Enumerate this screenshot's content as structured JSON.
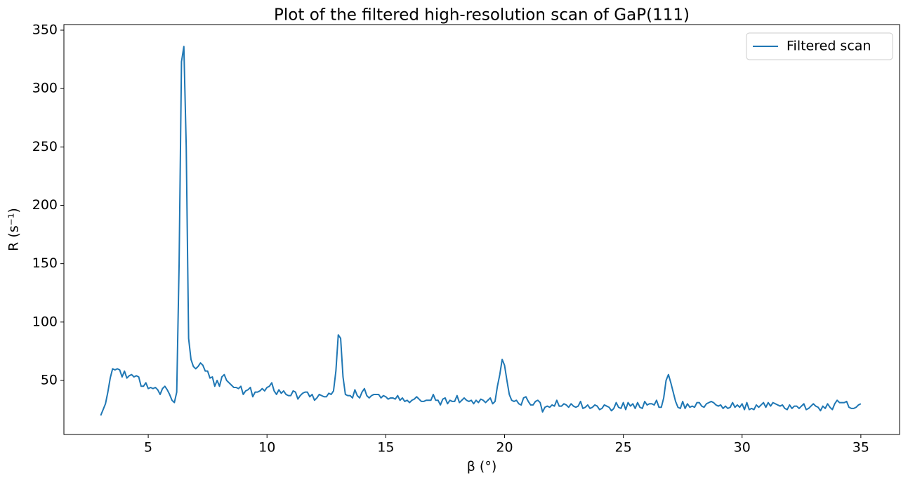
{
  "chart_data": {
    "type": "line",
    "title": "Plot of the filtered high-resolution scan of GaP(111)",
    "x_label": "β (°)",
    "y_label": "R (s⁻¹)",
    "x": [
      3,
      3.1,
      3.2,
      3.3,
      3.4,
      3.5,
      3.6,
      3.7,
      3.8,
      3.9,
      4,
      4.1,
      4.2,
      4.3,
      4.4,
      4.5,
      4.6,
      4.7,
      4.8,
      4.9,
      5,
      5.1,
      5.2,
      5.3,
      5.4,
      5.5,
      5.6,
      5.7,
      5.8,
      5.9,
      6,
      6.1,
      6.2,
      6.3,
      6.4,
      6.5,
      6.6,
      6.7,
      6.8,
      6.9,
      7,
      7.1,
      7.2,
      7.3,
      7.4,
      7.5,
      7.6,
      7.7,
      7.8,
      7.9,
      8,
      8.1,
      8.2,
      8.3,
      8.4,
      8.5,
      8.6,
      8.7,
      8.8,
      8.9,
      9,
      9.1,
      9.2,
      9.3,
      9.4,
      9.5,
      9.6,
      9.7,
      9.8,
      9.9,
      10,
      10.1,
      10.2,
      10.3,
      10.4,
      10.5,
      10.6,
      10.7,
      10.8,
      10.9,
      11,
      11.1,
      11.2,
      11.3,
      11.4,
      11.5,
      11.6,
      11.7,
      11.8,
      11.9,
      12,
      12.1,
      12.2,
      12.3,
      12.4,
      12.5,
      12.6,
      12.7,
      12.8,
      12.9,
      13,
      13.1,
      13.2,
      13.3,
      13.4,
      13.5,
      13.6,
      13.7,
      13.8,
      13.9,
      14,
      14.1,
      14.2,
      14.3,
      14.4,
      14.5,
      14.6,
      14.7,
      14.8,
      14.9,
      15,
      15.1,
      15.2,
      15.3,
      15.4,
      15.5,
      15.6,
      15.7,
      15.8,
      15.9,
      16,
      16.1,
      16.2,
      16.3,
      16.4,
      16.5,
      16.6,
      16.7,
      16.8,
      16.9,
      17,
      17.1,
      17.2,
      17.3,
      17.4,
      17.5,
      17.6,
      17.7,
      17.8,
      17.9,
      18,
      18.1,
      18.2,
      18.3,
      18.4,
      18.5,
      18.6,
      18.7,
      18.8,
      18.9,
      19,
      19.1,
      19.2,
      19.3,
      19.4,
      19.5,
      19.6,
      19.7,
      19.8,
      19.9,
      20,
      20.1,
      20.2,
      20.3,
      20.4,
      20.5,
      20.6,
      20.7,
      20.8,
      20.9,
      21,
      21.1,
      21.2,
      21.3,
      21.4,
      21.5,
      21.6,
      21.7,
      21.8,
      21.9,
      22,
      22.1,
      22.2,
      22.3,
      22.4,
      22.5,
      22.6,
      22.7,
      22.8,
      22.9,
      23,
      23.1,
      23.2,
      23.3,
      23.4,
      23.5,
      23.6,
      23.7,
      23.8,
      23.9,
      24,
      24.1,
      24.2,
      24.3,
      24.4,
      24.5,
      24.6,
      24.7,
      24.8,
      24.9,
      25,
      25.1,
      25.2,
      25.3,
      25.4,
      25.5,
      25.6,
      25.7,
      25.8,
      25.9,
      26,
      26.1,
      26.2,
      26.3,
      26.4,
      26.5,
      26.6,
      26.7,
      26.8,
      26.9,
      27,
      27.1,
      27.2,
      27.3,
      27.4,
      27.5,
      27.6,
      27.7,
      27.8,
      27.9,
      28,
      28.1,
      28.2,
      28.3,
      28.4,
      28.5,
      28.6,
      28.7,
      28.8,
      28.9,
      29,
      29.1,
      29.2,
      29.3,
      29.4,
      29.5,
      29.6,
      29.7,
      29.8,
      29.9,
      30,
      30.1,
      30.2,
      30.3,
      30.4,
      30.5,
      30.6,
      30.7,
      30.8,
      30.9,
      31,
      31.1,
      31.2,
      31.3,
      31.4,
      31.5,
      31.6,
      31.7,
      31.8,
      31.9,
      32,
      32.1,
      32.2,
      32.3,
      32.4,
      32.5,
      32.6,
      32.7,
      32.8,
      32.9,
      33,
      33.1,
      33.2,
      33.3,
      33.4,
      33.5,
      33.6,
      33.7,
      33.8,
      33.9,
      34,
      34.1,
      34.2,
      34.3,
      34.4,
      34.5,
      34.6,
      34.7,
      34.8,
      34.9,
      35
    ],
    "series": [
      {
        "name": "Filtered scan",
        "color": "#1f77b4",
        "values": [
          20,
          25,
          30,
          40,
          52,
          60,
          59,
          60,
          59,
          53,
          58,
          52,
          54,
          55,
          53,
          54,
          53,
          45,
          45,
          48,
          43,
          44,
          43,
          44,
          42,
          38,
          43,
          45,
          42,
          38,
          33,
          31,
          40,
          150,
          323,
          336,
          250,
          86,
          68,
          62,
          60,
          62,
          65,
          63,
          58,
          58,
          52,
          53,
          45,
          50,
          45,
          53,
          55,
          50,
          48,
          46,
          44,
          44,
          43,
          45,
          38,
          41,
          42,
          44,
          36,
          40,
          40,
          41,
          43,
          41,
          44,
          45,
          48,
          41,
          38,
          42,
          39,
          41,
          38,
          37,
          37,
          41,
          40,
          34,
          37,
          39,
          40,
          40,
          36,
          38,
          33,
          35,
          38,
          37,
          36,
          36,
          39,
          38,
          41,
          58,
          89,
          86,
          53,
          38,
          37,
          37,
          35,
          42,
          37,
          35,
          40,
          43,
          37,
          35,
          37,
          38,
          38,
          38,
          35,
          37,
          36,
          34,
          35,
          35,
          34,
          37,
          33,
          35,
          32,
          33,
          31,
          33,
          34,
          36,
          34,
          32,
          32,
          33,
          33,
          33,
          38,
          33,
          33,
          29,
          34,
          35,
          30,
          33,
          32,
          32,
          37,
          31,
          33,
          35,
          33,
          32,
          33,
          30,
          33,
          31,
          34,
          33,
          31,
          33,
          35,
          30,
          32,
          45,
          55,
          68,
          63,
          50,
          38,
          33,
          32,
          33,
          30,
          29,
          35,
          36,
          32,
          29,
          29,
          32,
          33,
          31,
          23,
          27,
          28,
          27,
          29,
          28,
          33,
          28,
          28,
          30,
          29,
          27,
          30,
          28,
          27,
          28,
          32,
          26,
          27,
          29,
          26,
          27,
          29,
          28,
          25,
          26,
          29,
          28,
          27,
          24,
          26,
          31,
          27,
          26,
          31,
          25,
          31,
          28,
          30,
          26,
          31,
          27,
          26,
          32,
          29,
          30,
          30,
          29,
          33,
          27,
          27,
          35,
          50,
          55,
          48,
          40,
          32,
          27,
          26,
          32,
          26,
          30,
          27,
          28,
          27,
          31,
          31,
          28,
          27,
          30,
          31,
          32,
          31,
          29,
          28,
          29,
          26,
          28,
          26,
          27,
          31,
          27,
          29,
          27,
          30,
          25,
          31,
          25,
          26,
          25,
          29,
          27,
          29,
          31,
          27,
          31,
          28,
          31,
          30,
          29,
          28,
          29,
          26,
          25,
          29,
          26,
          28,
          28,
          26,
          28,
          30,
          25,
          26,
          28,
          30,
          28,
          27,
          24,
          28,
          26,
          30,
          27,
          25,
          30,
          33,
          31,
          31,
          31,
          32,
          27,
          26,
          26,
          27,
          29,
          30
        ]
      }
    ],
    "xlim": [
      1.45,
      36.63
    ],
    "xticks": [
      5,
      10,
      15,
      20,
      25,
      30,
      35
    ],
    "ylim": [
      3.7,
      354.8
    ],
    "yticks": [
      50,
      100,
      150,
      200,
      250,
      300,
      350
    ],
    "grid": false,
    "legend": "upper right"
  }
}
